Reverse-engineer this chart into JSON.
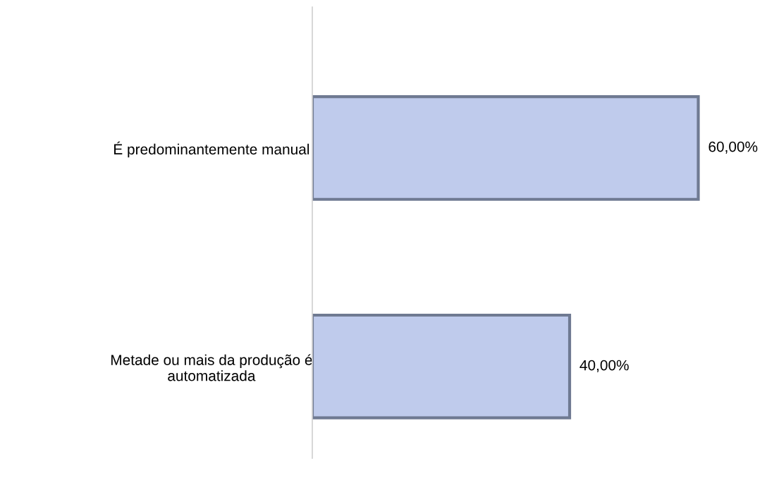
{
  "chart_data": {
    "type": "bar",
    "orientation": "horizontal",
    "categories": [
      "É predominantemente manual",
      "Metade ou mais da produção é\nautomatizada"
    ],
    "values": [
      60,
      40
    ],
    "color": "#bfcbec",
    "value_labels": [
      "60,00%",
      "40,00%"
    ],
    "grid": false,
    "legend": false
  }
}
